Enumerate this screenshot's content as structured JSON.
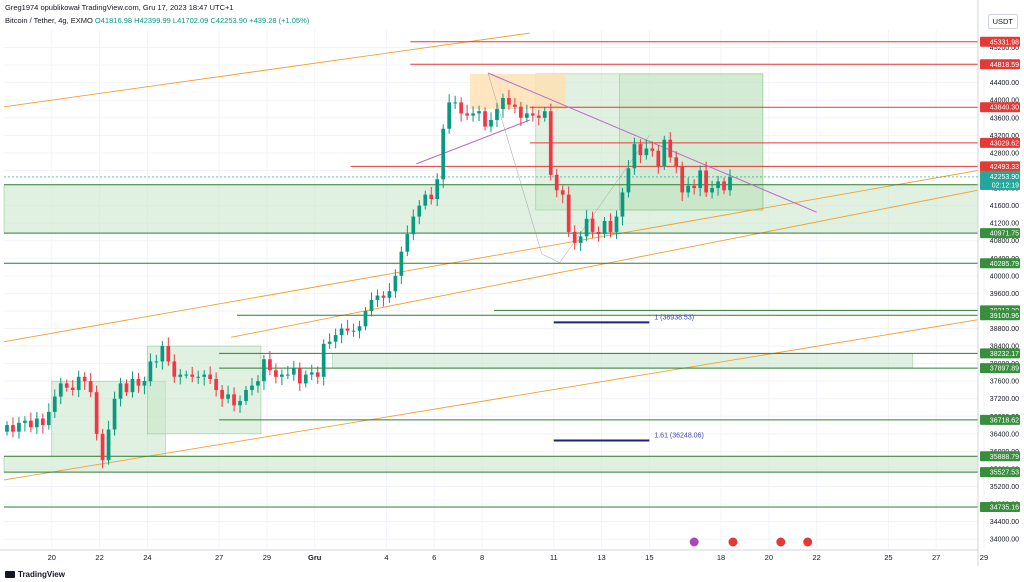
{
  "header": {
    "author": "Greg1974 opublikował TradingView.com, Gru 17, 2023 18:47 UTC+1",
    "symbol": "Bitcoin / Tether, 4g, EXMO",
    "ohlc": "O41816.98 H42399.99 L41702.09 C42253.90 +439.28 (+1.05%)"
  },
  "currency": "USDT",
  "footer": {
    "brand": "TradingView"
  },
  "colors": {
    "up": "#089981",
    "down": "#f23645",
    "hline_red": "#e53935",
    "hline_green": "#2e7d32",
    "zone": "#c8e6c9",
    "channel": "#f0a030",
    "triangle": "#ce93d8",
    "fib": "#1a237e",
    "grid": "#f0f3fa"
  },
  "chart_data": {
    "type": "candlestick",
    "title": "",
    "ylim": [
      33800,
      45600
    ],
    "y_ticks": [
      34000,
      34400,
      34800,
      35200,
      35600,
      36000,
      36400,
      36800,
      37200,
      37600,
      38000,
      38400,
      38800,
      39200,
      39600,
      40000,
      40400,
      40800,
      41200,
      41600,
      42000,
      42400,
      42800,
      43200,
      43600,
      44000,
      44400,
      44800,
      45200
    ],
    "x_range": [
      0,
      163
    ],
    "x_ticks": [
      {
        "label": "20",
        "x": 8
      },
      {
        "label": "22",
        "x": 16
      },
      {
        "label": "24",
        "x": 24
      },
      {
        "label": "27",
        "x": 36
      },
      {
        "label": "29",
        "x": 44
      },
      {
        "label": "Gru",
        "x": 52
      },
      {
        "label": "4",
        "x": 64
      },
      {
        "label": "6",
        "x": 72
      },
      {
        "label": "8",
        "x": 80
      },
      {
        "label": "11",
        "x": 92
      },
      {
        "label": "13",
        "x": 100
      },
      {
        "label": "15",
        "x": 108
      },
      {
        "label": "18",
        "x": 120
      },
      {
        "label": "20",
        "x": 128
      },
      {
        "label": "22",
        "x": 136
      },
      {
        "label": "25",
        "x": 148
      },
      {
        "label": "27",
        "x": 156
      },
      {
        "label": "29",
        "x": 164
      }
    ],
    "candles_close": [
      36600,
      36450,
      36650,
      36700,
      36550,
      36750,
      36600,
      36900,
      37250,
      37550,
      37450,
      37400,
      37700,
      37600,
      37350,
      36400,
      35800,
      36500,
      37200,
      37550,
      37350,
      37650,
      37500,
      37600,
      38050,
      38050,
      38400,
      38050,
      37700,
      37750,
      37750,
      37700,
      37700,
      37750,
      37650,
      37400,
      37200,
      37300,
      37050,
      37150,
      37400,
      37500,
      37600,
      38100,
      37850,
      37700,
      37750,
      37750,
      37900,
      37550,
      37750,
      37800,
      37700,
      38450,
      38500,
      38650,
      38800,
      38750,
      38750,
      38850,
      39200,
      39450,
      39550,
      39500,
      39650,
      40000,
      40550,
      40950,
      41350,
      41600,
      41850,
      41750,
      42200,
      43350,
      43950,
      43950,
      43700,
      43650,
      43700,
      43750,
      43400,
      43550,
      43800,
      44050,
      43900,
      43850,
      43600,
      43700,
      43650,
      43600,
      43750,
      42300,
      41950,
      41850,
      41000,
      40750,
      40900,
      41300,
      41000,
      40950,
      41250,
      41000,
      41350,
      41900,
      42450,
      43000,
      42750,
      42900,
      42850,
      42500,
      43100,
      42700,
      42500,
      41900,
      42050,
      42000,
      42400,
      41900,
      42000,
      42150,
      41950,
      42250
    ],
    "opens_note": "",
    "open_first": 36450,
    "high_low_pad": 150,
    "horizontal_levels": [
      {
        "value": 45331.98,
        "label": "45331.98",
        "color": "red",
        "x_start": 68
      },
      {
        "value": 44818.59,
        "label": "44818.59",
        "color": "red",
        "x_start": 68
      },
      {
        "value": 43840.3,
        "label": "43840.30",
        "color": "red",
        "x_start": 88
      },
      {
        "value": 43029.62,
        "label": "43029.62",
        "color": "red",
        "x_start": 88
      },
      {
        "value": 42493.33,
        "label": "42493.33",
        "color": "red",
        "x_start": 58
      },
      {
        "value": 42076.14,
        "label": "42076.14",
        "color": "green",
        "x_start": 0
      },
      {
        "value": 40971.75,
        "label": "40971.75",
        "color": "green",
        "x_start": 0
      },
      {
        "value": 40285.79,
        "label": "40285.79",
        "color": "green",
        "x_start": 0
      },
      {
        "value": 39213.2,
        "label": "39213.20",
        "color": "green",
        "x_start": 82
      },
      {
        "value": 39100.96,
        "label": "39100.96",
        "color": "green",
        "x_start": 39
      },
      {
        "value": 38232.17,
        "label": "38232.17",
        "color": "green",
        "x_start": 36
      },
      {
        "value": 37897.89,
        "label": "37897.89",
        "color": "green",
        "x_start": 36
      },
      {
        "value": 36718.62,
        "label": "36718.62",
        "color": "green",
        "x_start": 36
      },
      {
        "value": 35888.79,
        "label": "35888.79",
        "color": "green",
        "x_start": 0
      },
      {
        "value": 35527.53,
        "label": "35527.53",
        "color": "green",
        "x_start": 0
      },
      {
        "value": 34735.16,
        "label": "34735.16",
        "color": "green",
        "x_start": 0
      }
    ],
    "last_price": {
      "value": 42253.9,
      "label": "42253.90",
      "countdown": "02:12:19"
    },
    "zones": [
      {
        "x0": 0,
        "x1": 163,
        "y0": 40971.75,
        "y1": 42076.14
      },
      {
        "x0": 8,
        "x1": 27,
        "y0": 35888.79,
        "y1": 37600
      },
      {
        "x0": 24,
        "x1": 43,
        "y0": 36400,
        "y1": 38400
      },
      {
        "x0": 55,
        "x1": 152,
        "y0": 37897.89,
        "y1": 38232.17
      },
      {
        "x0": 0,
        "x1": 163,
        "y0": 35527.53,
        "y1": 35888.79
      },
      {
        "x0": 89,
        "x1": 127,
        "y0": 41500,
        "y1": 44600
      },
      {
        "x0": 103,
        "x1": 127,
        "y0": 41500,
        "y1": 44600
      },
      {
        "x0": 103,
        "x1": 127,
        "y0": 41500,
        "y1": 42076.14
      }
    ],
    "yellow_zone": {
      "x0": 78,
      "x1": 94,
      "y0": 43800,
      "y1": 44600
    },
    "fib_levels": [
      {
        "label": "1 (38938.53)",
        "value": 38938.53,
        "x0": 92,
        "x1": 108
      },
      {
        "label": "1.61 (36248.06)",
        "value": 36248.06,
        "x0": 92,
        "x1": 108
      }
    ],
    "channel_lines": [
      {
        "x0": 0,
        "y0": 43850,
        "x1": 88,
        "y1": 45530
      },
      {
        "x0": 0,
        "y0": 38500,
        "x1": 163,
        "y1": 42400
      },
      {
        "x0": 0,
        "y0": 35350,
        "x1": 163,
        "y1": 39000
      },
      {
        "x0": 38,
        "y0": 38600,
        "x1": 163,
        "y1": 41950
      }
    ],
    "triangle_lines": [
      {
        "x0": 81,
        "y0": 44620,
        "x1": 136,
        "y1": 41450
      },
      {
        "x0": 69,
        "y0": 42550,
        "x1": 88,
        "y1": 43550
      }
    ],
    "triangle_thin_lines": [
      {
        "x0": 81,
        "y0": 44620,
        "x1": 90,
        "y1": 40500
      },
      {
        "x0": 90,
        "y0": 40500,
        "x1": 93,
        "y1": 40300
      },
      {
        "x0": 93,
        "y0": 40300,
        "x1": 108,
        "y1": 43200
      }
    ],
    "event_icons": [
      {
        "x": 115.5,
        "type": "bolt"
      },
      {
        "x": 122,
        "type": "flag"
      },
      {
        "x": 130,
        "type": "flag"
      },
      {
        "x": 134.5,
        "type": "flag"
      }
    ]
  }
}
